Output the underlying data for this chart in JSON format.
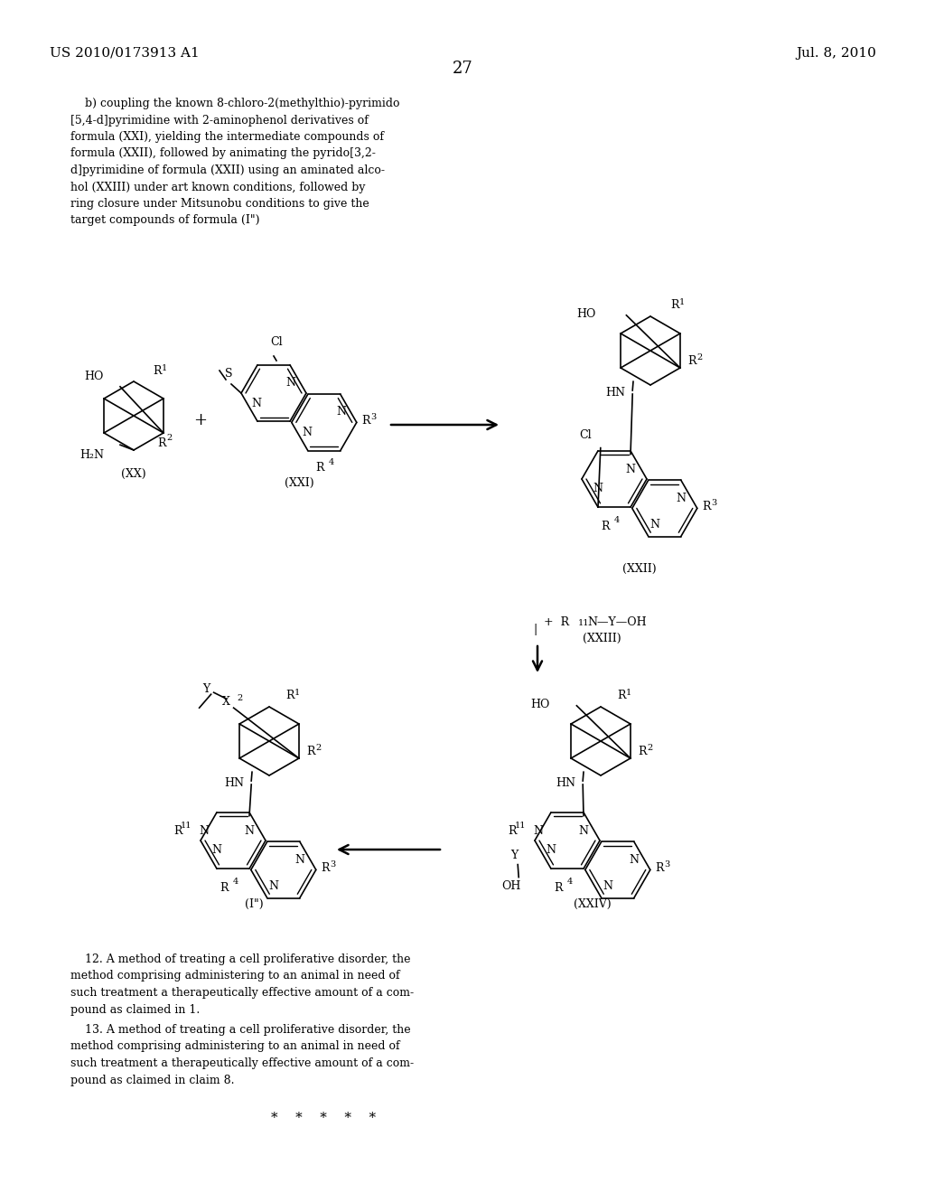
{
  "background_color": "#ffffff",
  "page_number": "27",
  "patent_number": "US 2010/0173913 A1",
  "patent_date": "Jul. 8, 2010",
  "body_text": "    b) coupling the known 8-chloro-2(methylthio)-pyrimido\n[5,4-d]pyrimidine with 2-aminophenol derivatives of\nformula (XXI), yielding the intermediate compounds of\nformula (XXII), followed by animating the pyrido[3,2-\nd]pyrimidine of formula (XXII) using an aminated alco-\nhol (XXIII) under art known conditions, followed by\nring closure under Mitsunobu conditions to give the\ntarget compounds of formula (I\")",
  "claim_12_text": "    12. A method of treating a cell proliferative disorder, the\nmethod comprising administering to an animal in need of\nsuch treatment a therapeutically effective amount of a com-\npound as claimed in 1.",
  "claim_13_text": "    13. A method of treating a cell proliferative disorder, the\nmethod comprising administering to an animal in need of\nsuch treatment a therapeutically effective amount of a com-\npound as claimed in claim 8.",
  "stars_text": "*    *    *    *    *"
}
